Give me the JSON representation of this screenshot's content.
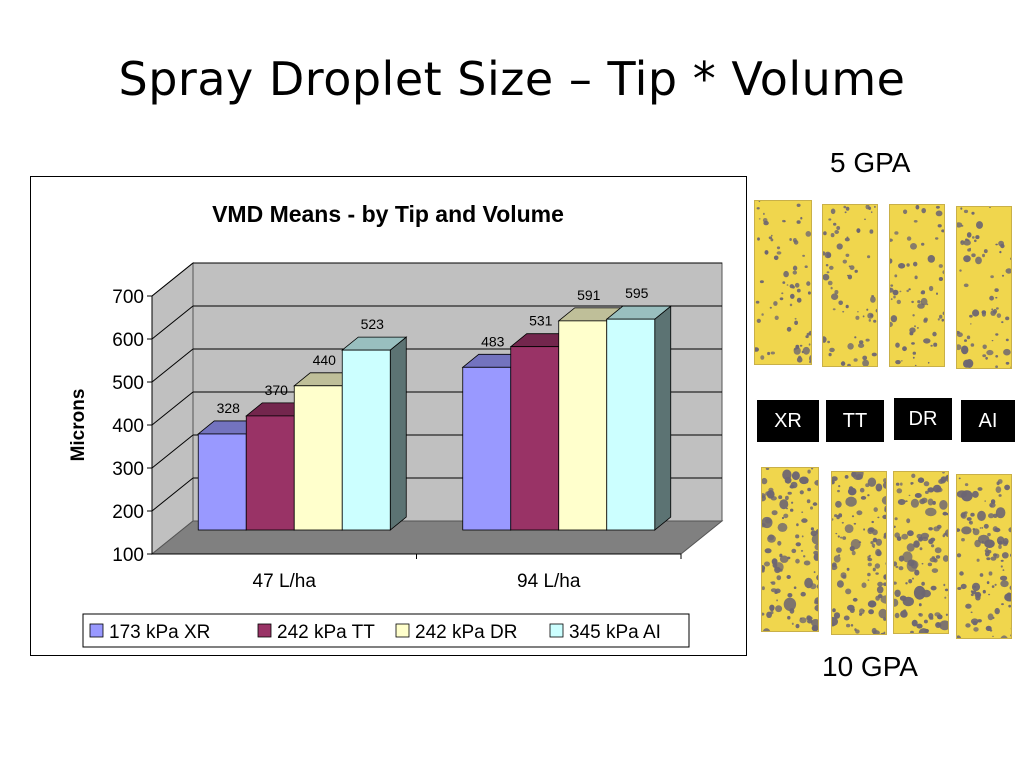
{
  "slide": {
    "title": "Spray Droplet Size – Tip * Volume",
    "top_label": "5 GPA",
    "bottom_label": "10 GPA",
    "tip_labels": [
      "XR",
      "TT",
      "DR",
      "AI"
    ]
  },
  "chart_data": {
    "type": "bar",
    "title": "VMD Means - by Tip and Volume",
    "xlabel": "",
    "ylabel": "Microns",
    "categories": [
      "47 L/ha",
      "94 L/ha"
    ],
    "ylim": [
      100,
      700
    ],
    "yticks": [
      100,
      200,
      300,
      400,
      500,
      600,
      700
    ],
    "series": [
      {
        "name": "173 kPa XR",
        "values": [
          328,
          483
        ],
        "color": "#9999ff"
      },
      {
        "name": "242 kPa TT",
        "values": [
          370,
          531
        ],
        "color": "#993366"
      },
      {
        "name": "242 kPa DR",
        "values": [
          440,
          591
        ],
        "color": "#ffffcc"
      },
      {
        "name": "345 kPa AI",
        "values": [
          523,
          595
        ],
        "color": "#ccffff"
      }
    ],
    "grid": true,
    "legend": "bottom",
    "colors": {
      "wall": "#c0c0c0",
      "floor": "#808080"
    }
  }
}
